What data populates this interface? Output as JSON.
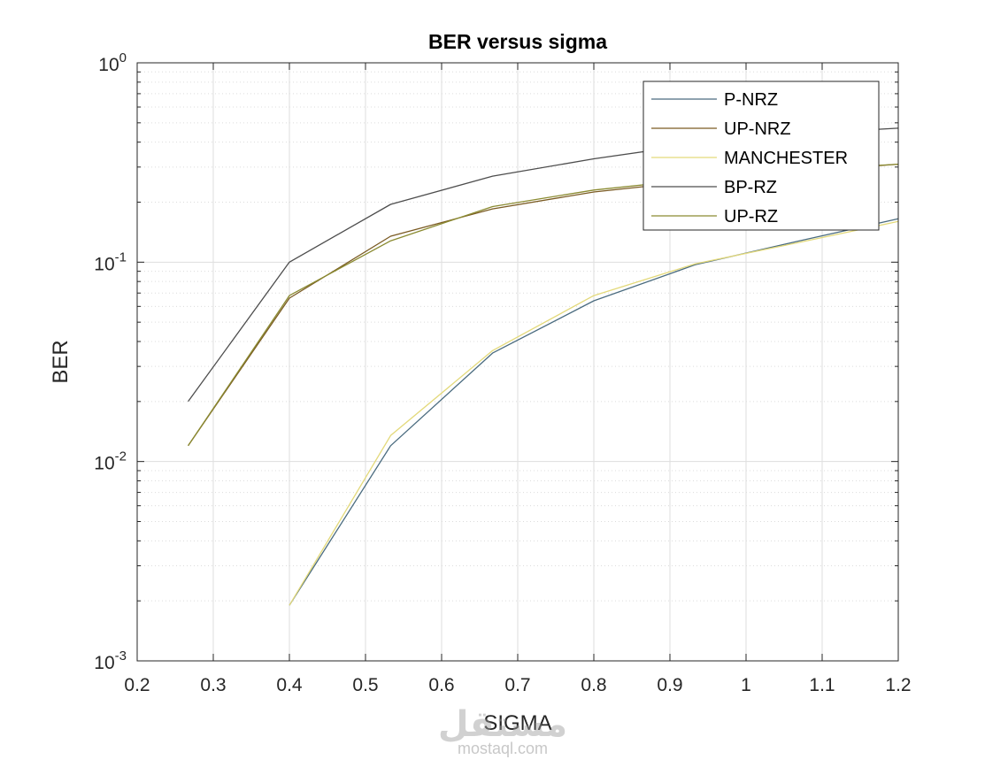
{
  "chart_data": {
    "type": "line",
    "title": "BER versus sigma",
    "xlabel": "SIGMA",
    "ylabel": "BER",
    "xlim": [
      0.2,
      1.2
    ],
    "ylim": [
      0.001,
      1
    ],
    "yscale": "log",
    "grid": true,
    "minor_grid": true,
    "legend_position": "top-right",
    "xticks": [
      "0.2",
      "0.3",
      "0.4",
      "0.5",
      "0.6",
      "0.7",
      "0.8",
      "0.9",
      "1",
      "1.1",
      "1.2"
    ],
    "yticks": [
      {
        "base": "10",
        "exp": "0",
        "value": 1
      },
      {
        "base": "10",
        "exp": "-1",
        "value": 0.1
      },
      {
        "base": "10",
        "exp": "-2",
        "value": 0.01
      },
      {
        "base": "10",
        "exp": "-3",
        "value": 0.001
      }
    ],
    "series": [
      {
        "name": "P-NRZ",
        "color": "#4a6b7f",
        "x": [
          0.4,
          0.533,
          0.667,
          0.8,
          0.933,
          1.067,
          1.2
        ],
        "y": [
          0.0019,
          0.012,
          0.035,
          0.064,
          0.097,
          0.127,
          0.165
        ]
      },
      {
        "name": "UP-NRZ",
        "color": "#7a5a22",
        "x": [
          0.267,
          0.4,
          0.533,
          0.667,
          0.8,
          0.933,
          1.067,
          1.2
        ],
        "y": [
          0.012,
          0.066,
          0.135,
          0.185,
          0.225,
          0.255,
          0.285,
          0.31
        ]
      },
      {
        "name": "MANCHESTER",
        "color": "#e3d97a",
        "x": [
          0.4,
          0.533,
          0.667,
          0.8,
          0.933,
          1.067,
          1.2
        ],
        "y": [
          0.0019,
          0.0135,
          0.036,
          0.068,
          0.098,
          0.125,
          0.16
        ]
      },
      {
        "name": "BP-RZ",
        "color": "#4d4d4d",
        "x": [
          0.267,
          0.4,
          0.533,
          0.667,
          0.8,
          0.933,
          1.067,
          1.2
        ],
        "y": [
          0.02,
          0.1,
          0.195,
          0.27,
          0.33,
          0.39,
          0.44,
          0.47
        ]
      },
      {
        "name": "UP-RZ",
        "color": "#8a8a30",
        "x": [
          0.267,
          0.4,
          0.533,
          0.667,
          0.8,
          0.933,
          1.067,
          1.2
        ],
        "y": [
          0.012,
          0.068,
          0.128,
          0.19,
          0.23,
          0.26,
          0.29,
          0.31
        ]
      }
    ]
  },
  "watermark": {
    "logo": "مستقل",
    "text": "mostaql.com"
  }
}
